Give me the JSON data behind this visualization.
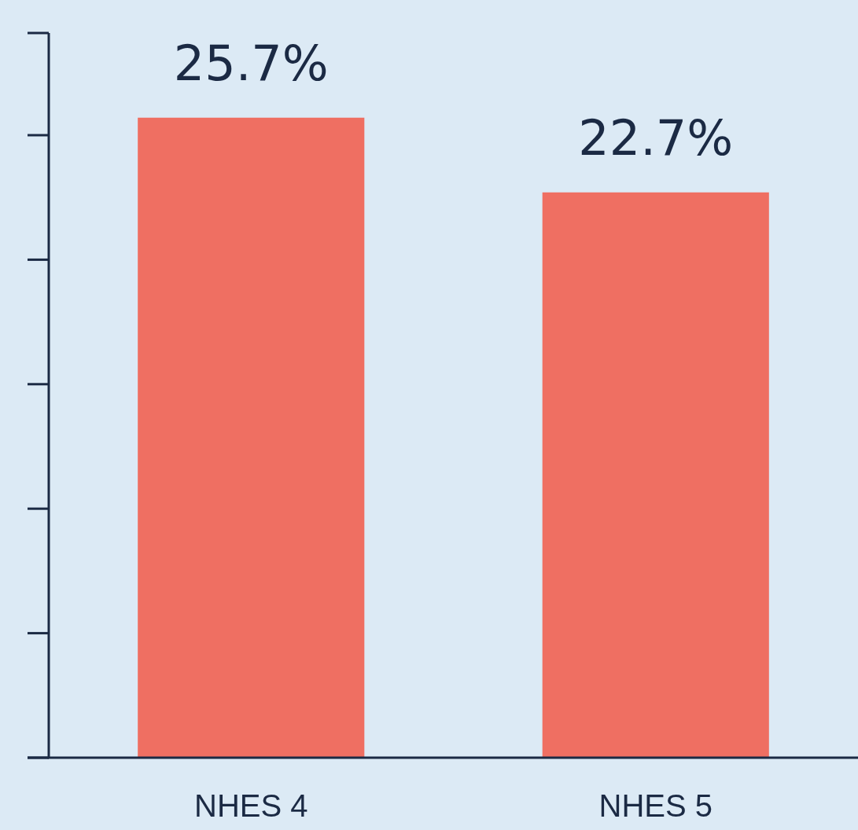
{
  "chart_data": {
    "type": "bar",
    "categories": [
      "NHES 4",
      "NHES 5"
    ],
    "values": [
      25.7,
      22.7
    ],
    "color": "#ef6f62",
    "value_labels": [
      "25.7%",
      "22.7%"
    ],
    "ylim": [
      0,
      29.1
    ]
  }
}
